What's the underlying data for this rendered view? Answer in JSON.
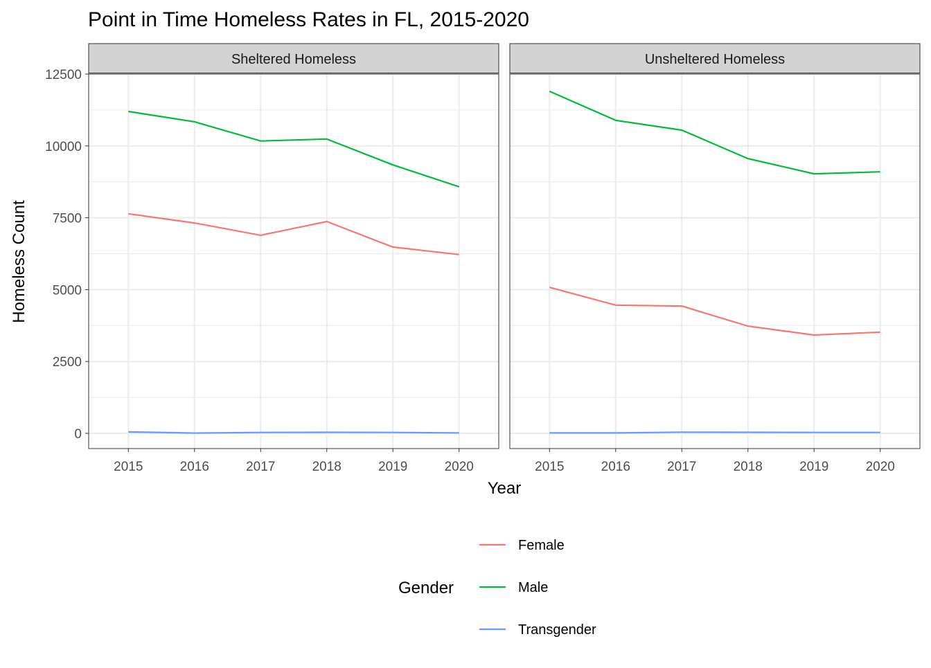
{
  "chart_data": {
    "type": "line",
    "title": "Point in Time Homeless Rates in FL, 2015-2020",
    "xlabel": "Year",
    "ylabel": "Homeless Count",
    "ylim": [
      -530,
      12500
    ],
    "xlim": [
      2014.4,
      2020.6
    ],
    "grid": true,
    "x": [
      2015,
      2016,
      2017,
      2018,
      2019,
      2020
    ],
    "x_ticks": [
      "2015",
      "2016",
      "2017",
      "2018",
      "2019",
      "2020"
    ],
    "y_ticks": [
      0,
      2500,
      5000,
      7500,
      10000,
      12500
    ],
    "y_tick_labels": [
      "0",
      "2500",
      "5000",
      "7500",
      "10000",
      "12500"
    ],
    "legend": {
      "title": "Gender",
      "placement": "bottom",
      "entries": [
        "Female",
        "Male",
        "Transgender"
      ]
    },
    "colors": {
      "Female": "#F8766D",
      "Male": "#00BA38",
      "Transgender": "#619CFF"
    },
    "facets": [
      {
        "label": "Sheltered Homeless",
        "series": [
          {
            "name": "Female",
            "values": [
              7640,
              7320,
              6890,
              7370,
              6480,
              6220
            ]
          },
          {
            "name": "Male",
            "values": [
              11200,
              10840,
              10170,
              10240,
              9340,
              8580
            ]
          },
          {
            "name": "Transgender",
            "values": [
              50,
              10,
              30,
              35,
              30,
              15
            ]
          }
        ]
      },
      {
        "label": "Unsheltered Homeless",
        "series": [
          {
            "name": "Female",
            "values": [
              5080,
              4460,
              4430,
              3730,
              3420,
              3520
            ]
          },
          {
            "name": "Male",
            "values": [
              11900,
              10890,
              10550,
              9560,
              9030,
              9100
            ]
          },
          {
            "name": "Transgender",
            "values": [
              15,
              15,
              40,
              35,
              30,
              30
            ]
          }
        ]
      }
    ]
  }
}
